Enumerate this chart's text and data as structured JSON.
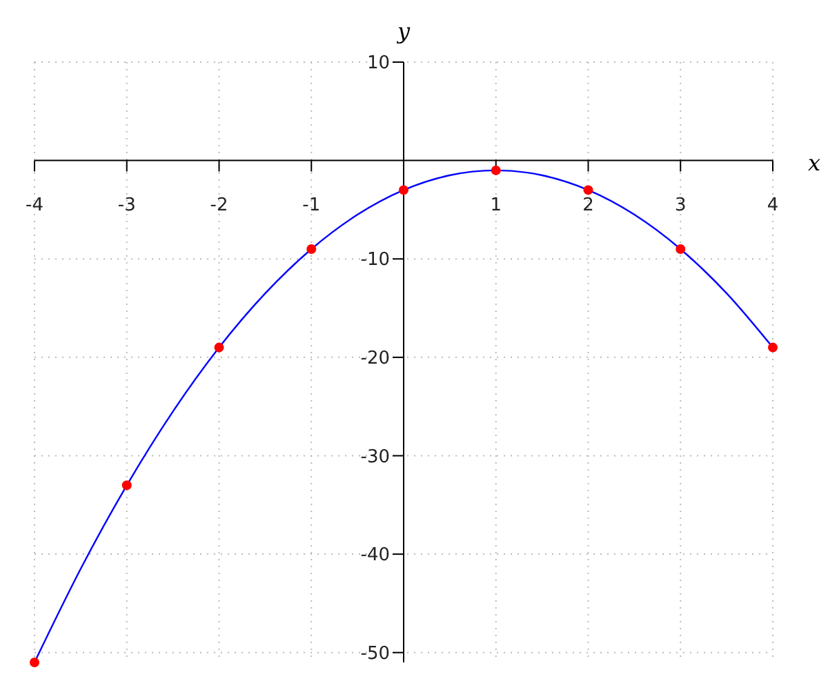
{
  "chart_data": {
    "type": "line",
    "xlabel": "x",
    "ylabel": "y",
    "xlim": [
      -4,
      4
    ],
    "xticks": [
      -4,
      -3,
      -2,
      -1,
      1,
      2,
      3,
      4
    ],
    "ylim": [
      -51,
      10
    ],
    "yticks": [
      10,
      -10,
      -20,
      -30,
      -40,
      -50
    ],
    "grid": true,
    "series": [
      {
        "type": "line",
        "color": "#0000ff",
        "x": [
          -4,
          -3.5,
          -3,
          -2.5,
          -2,
          -1.5,
          -1,
          -0.5,
          0,
          0.5,
          1,
          1.5,
          2,
          2.5,
          3,
          3.5,
          4
        ],
        "values": [
          -51,
          -41.5,
          -33,
          -25.5,
          -19,
          -13.5,
          -9,
          -5.5,
          -3,
          -1.5,
          -1,
          -1.5,
          -3,
          -5.5,
          -9,
          -13.5,
          -19
        ]
      },
      {
        "type": "scatter",
        "color": "#ff0000",
        "marker": "circle",
        "x": [
          -4,
          -3,
          -2,
          -1,
          0,
          1,
          2,
          3,
          4
        ],
        "values": [
          -51,
          -33,
          -19,
          -9,
          -3,
          -1,
          -3,
          -9,
          -19
        ]
      }
    ]
  }
}
